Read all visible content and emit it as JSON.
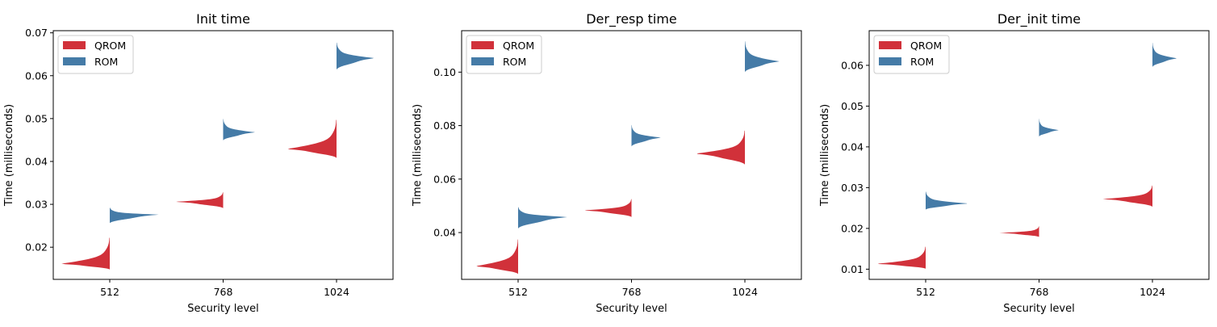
{
  "colors": {
    "QROM": "#d1313a",
    "ROM": "#457ba7"
  },
  "chart_data": [
    {
      "type": "violin",
      "title": "Init time",
      "xlabel": "Security level",
      "ylabel": "Time (milliseconds)",
      "categories": [
        "512",
        "768",
        "1024"
      ],
      "ylim": [
        0.0125,
        0.0705
      ],
      "yticks": [
        0.02,
        0.03,
        0.04,
        0.05,
        0.06,
        0.07
      ],
      "ytick_labels": [
        "0.02",
        "0.03",
        "0.04",
        "0.05",
        "0.06",
        "0.07"
      ],
      "legend": {
        "position": "top-left",
        "entries": [
          "QROM",
          "ROM"
        ]
      },
      "series": [
        {
          "name": "QROM",
          "side": "left",
          "violins": [
            {
              "category": "512",
              "min": 0.0148,
              "peak": 0.0161,
              "max": 0.0222,
              "peak_width": 1.0
            },
            {
              "category": "768",
              "min": 0.0291,
              "peak": 0.0306,
              "max": 0.0328,
              "peak_width": 0.97
            },
            {
              "category": "1024",
              "min": 0.0408,
              "peak": 0.0429,
              "max": 0.0497,
              "peak_width": 1.0
            }
          ]
        },
        {
          "name": "ROM",
          "side": "right",
          "violins": [
            {
              "category": "512",
              "min": 0.0256,
              "peak": 0.0276,
              "max": 0.0292,
              "peak_width": 1.0
            },
            {
              "category": "768",
              "min": 0.0449,
              "peak": 0.0468,
              "max": 0.0499,
              "peak_width": 0.65
            },
            {
              "category": "1024",
              "min": 0.0614,
              "peak": 0.0641,
              "max": 0.0677,
              "peak_width": 0.77
            }
          ]
        }
      ]
    },
    {
      "type": "violin",
      "title": "Der_resp time",
      "xlabel": "Security level",
      "ylabel": "Time (milliseconds)",
      "categories": [
        "512",
        "768",
        "1024"
      ],
      "ylim": [
        0.0225,
        0.1155
      ],
      "yticks": [
        0.04,
        0.06,
        0.08,
        0.1
      ],
      "ytick_labels": [
        "0.04",
        "0.06",
        "0.08",
        "0.10"
      ],
      "legend": {
        "position": "top-left",
        "entries": [
          "QROM",
          "ROM"
        ]
      },
      "series": [
        {
          "name": "QROM",
          "side": "left",
          "violins": [
            {
              "category": "512",
              "min": 0.0245,
              "peak": 0.0274,
              "max": 0.0374,
              "peak_width": 0.87
            },
            {
              "category": "768",
              "min": 0.0458,
              "peak": 0.0483,
              "max": 0.0525,
              "peak_width": 0.97
            },
            {
              "category": "1024",
              "min": 0.0654,
              "peak": 0.0695,
              "max": 0.0781,
              "peak_width": 1.0
            }
          ]
        },
        {
          "name": "ROM",
          "side": "right",
          "violins": [
            {
              "category": "512",
              "min": 0.0415,
              "peak": 0.0458,
              "max": 0.0495,
              "peak_width": 1.0
            },
            {
              "category": "768",
              "min": 0.0722,
              "peak": 0.0755,
              "max": 0.0802,
              "peak_width": 0.6
            },
            {
              "category": "1024",
              "min": 0.1,
              "peak": 0.104,
              "max": 0.1115,
              "peak_width": 0.7
            }
          ]
        }
      ]
    },
    {
      "type": "violin",
      "title": "Der_init time",
      "xlabel": "Security level",
      "ylabel": "Time (milliseconds)",
      "categories": [
        "512",
        "768",
        "1024"
      ],
      "ylim": [
        0.0075,
        0.0685
      ],
      "yticks": [
        0.01,
        0.02,
        0.03,
        0.04,
        0.05,
        0.06
      ],
      "ytick_labels": [
        "0.01",
        "0.02",
        "0.03",
        "0.04",
        "0.05",
        "0.06"
      ],
      "legend": {
        "position": "top-left",
        "entries": [
          "QROM",
          "ROM"
        ]
      },
      "series": [
        {
          "name": "QROM",
          "side": "left",
          "violins": [
            {
              "category": "512",
              "min": 0.0101,
              "peak": 0.0113,
              "max": 0.0155,
              "peak_width": 1.0
            },
            {
              "category": "768",
              "min": 0.0179,
              "peak": 0.0189,
              "max": 0.0205,
              "peak_width": 0.8
            },
            {
              "category": "1024",
              "min": 0.0253,
              "peak": 0.0272,
              "max": 0.0305,
              "peak_width": 1.0
            }
          ]
        },
        {
          "name": "ROM",
          "side": "right",
          "violins": [
            {
              "category": "512",
              "min": 0.0246,
              "peak": 0.0261,
              "max": 0.029,
              "peak_width": 0.87
            },
            {
              "category": "768",
              "min": 0.0425,
              "peak": 0.0441,
              "max": 0.0469,
              "peak_width": 0.4
            },
            {
              "category": "1024",
              "min": 0.0596,
              "peak": 0.0617,
              "max": 0.0655,
              "peak_width": 0.5
            }
          ]
        }
      ]
    }
  ]
}
